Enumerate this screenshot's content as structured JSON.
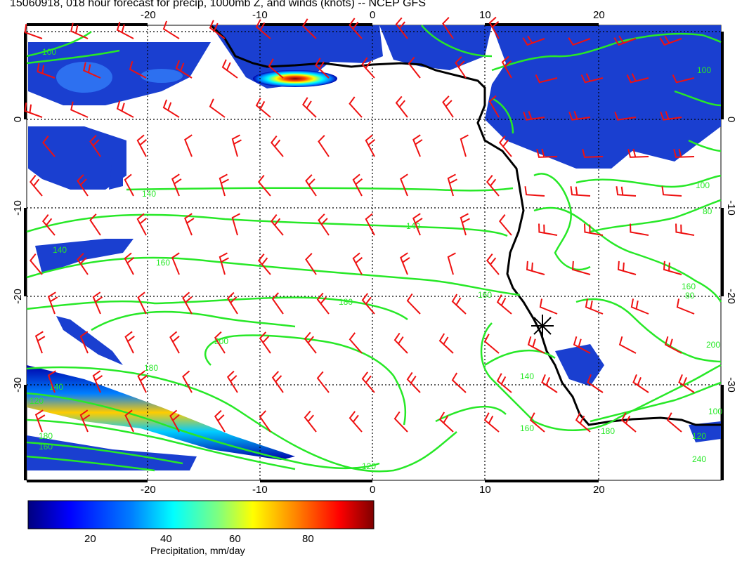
{
  "title": "15060918, 018 hour forecast for precip, 1000mb Z, and winds (knots) -- NCEP GFS",
  "map": {
    "lon_ticks": [
      "-20",
      "-10",
      "0",
      "10",
      "20"
    ],
    "lat_ticks": [
      "0",
      "-10",
      "-20",
      "-30"
    ],
    "contour_labels": [
      "100",
      "140",
      "160",
      "180",
      "200",
      "140",
      "160",
      "180",
      "100",
      "140",
      "160",
      "180",
      "120",
      "140",
      "80",
      "100",
      "120",
      "160",
      "200",
      "240",
      "160",
      "180",
      "140",
      "120",
      "100",
      "80"
    ],
    "colors": {
      "contour": "#27e827",
      "wind_barb": "#ee1111",
      "coastline": "#000000",
      "grid": "#000000"
    }
  },
  "colorbar": {
    "ticks": [
      "20",
      "40",
      "60",
      "80"
    ],
    "title": "Precipitation, mm/day",
    "colors": [
      "#00007f",
      "#0000ff",
      "#007fff",
      "#00ffff",
      "#7fff7f",
      "#ffff00",
      "#ff7f00",
      "#ff0000",
      "#7f0000"
    ]
  },
  "icons": {
    "marker": "star-marker-icon"
  }
}
